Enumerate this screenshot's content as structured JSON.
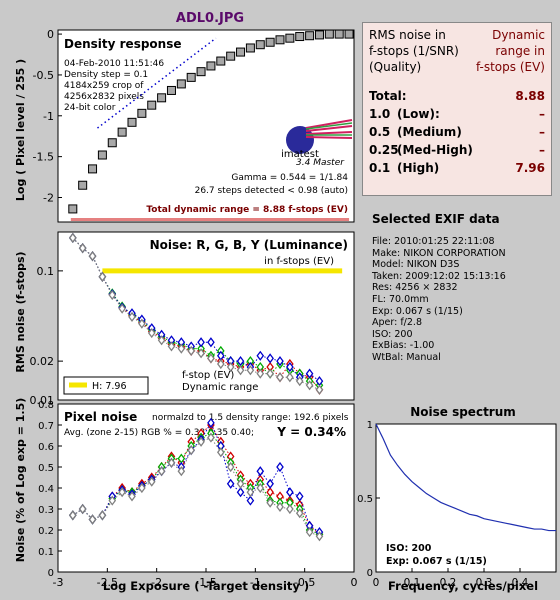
{
  "header": {
    "file_name": "ADL0.JPG"
  },
  "rms_table": {
    "header_left": [
      "RMS noise in",
      "f-stops (1/SNR)",
      "(Quality)"
    ],
    "header_right": [
      "Dynamic",
      "range in",
      "f-stops (EV)"
    ],
    "rows": [
      {
        "a": "Total:",
        "b": "",
        "c": "8.88"
      },
      {
        "a": "1.0",
        "b": "(Low):",
        "c": "–"
      },
      {
        "a": "0.5",
        "b": "(Medium)",
        "c": "–"
      },
      {
        "a": "0.25",
        "b": "(Med-High)",
        "c": "–"
      },
      {
        "a": "0.1",
        "b": "(High)",
        "c": "7.96"
      }
    ]
  },
  "exif": {
    "title": "Selected EXIF data",
    "lines": [
      "File:  2010:01:25 22:11:08",
      "Make:  NIKON CORPORATION",
      "Model: NIKON D3S",
      "Taken: 2009:12:02 15:13:16",
      "Res:   4256 × 2832",
      "FL:  70.0mm",
      "Exp:  0.067 s   (1/15)",
      "Aper:  f/2.8",
      "ISO:   200",
      "ExBias: -1.00",
      "WtBal: Manual"
    ]
  },
  "chart_data": [
    {
      "type": "scatter",
      "title": "Density response",
      "info_lines": [
        "04-Feb-2010 11:51:46",
        "Density step = 0.1",
        "4184x259 crop of",
        "4256x2832 pixels",
        "24-bit color"
      ],
      "logo_text": "imatest",
      "logo_sub": "3.4  Master",
      "gamma_text": "Gamma = 0.544 = 1/1.84",
      "steps_text": "26.7 steps detected < 0.98 (auto)",
      "dr_text": "Total dynamic range = 8.88 f-stops (EV)",
      "ylabel": "Log ( Pixel level / 255 )",
      "xlim": [
        -3.0,
        0.0
      ],
      "ylim": [
        -2.3,
        0.05
      ],
      "yticks": [
        0,
        -0.5,
        -1,
        -1.5,
        -2
      ],
      "x": [
        -2.85,
        -2.75,
        -2.65,
        -2.55,
        -2.45,
        -2.35,
        -2.25,
        -2.15,
        -2.05,
        -1.95,
        -1.85,
        -1.75,
        -1.65,
        -1.55,
        -1.45,
        -1.35,
        -1.25,
        -1.15,
        -1.05,
        -0.95,
        -0.85,
        -0.75,
        -0.65,
        -0.55,
        -0.45,
        -0.35,
        -0.25,
        -0.15,
        -0.05
      ],
      "y": [
        -2.14,
        -1.85,
        -1.65,
        -1.48,
        -1.33,
        -1.2,
        -1.08,
        -0.97,
        -0.87,
        -0.78,
        -0.69,
        -0.61,
        -0.53,
        -0.46,
        -0.39,
        -0.33,
        -0.27,
        -0.22,
        -0.17,
        -0.13,
        -0.1,
        -0.07,
        -0.05,
        -0.03,
        -0.02,
        -0.01,
        0,
        0,
        0
      ]
    },
    {
      "type": "line",
      "title": "Noise: R, G, B, Y (Luminance)",
      "subtitle": "in f-stops (EV)",
      "ylabel": "RMS noise (f-stops)",
      "scale": "log",
      "ylim": [
        0.01,
        0.2
      ],
      "ytick_labels": [
        "0.1",
        "0.02",
        "0.01"
      ],
      "legend_h": "H:  7.96",
      "legend_text": [
        "f-stop (EV)",
        "Dynamic range"
      ],
      "dr_line": 0.1,
      "x": [
        -2.85,
        -2.75,
        -2.65,
        -2.55,
        -2.45,
        -2.35,
        -2.25,
        -2.15,
        -2.05,
        -1.95,
        -1.85,
        -1.75,
        -1.65,
        -1.55,
        -1.45,
        -1.35,
        -1.25,
        -1.15,
        -1.05,
        -0.95,
        -0.85,
        -0.75,
        -0.65,
        -0.55,
        -0.45,
        -0.35
      ],
      "series": [
        {
          "values": [
            0.18,
            0.15,
            0.13,
            0.09,
            0.066,
            0.052,
            0.045,
            0.04,
            0.034,
            0.03,
            0.027,
            0.026,
            0.024,
            0.024,
            0.021,
            0.02,
            0.019,
            0.018,
            0.019,
            0.017,
            0.018,
            0.015,
            0.019,
            0.016,
            0.015,
            0.012
          ]
        },
        {
          "values": [
            0.18,
            0.15,
            0.13,
            0.09,
            0.067,
            0.053,
            0.046,
            0.041,
            0.035,
            0.031,
            0.028,
            0.027,
            0.025,
            0.025,
            0.022,
            0.024,
            0.02,
            0.019,
            0.02,
            0.018,
            0.016,
            0.019,
            0.017,
            0.016,
            0.014,
            0.013
          ]
        },
        {
          "values": [
            0.18,
            0.15,
            0.13,
            0.09,
            0.066,
            0.052,
            0.047,
            0.042,
            0.036,
            0.032,
            0.029,
            0.028,
            0.026,
            0.028,
            0.028,
            0.022,
            0.02,
            0.02,
            0.018,
            0.022,
            0.021,
            0.02,
            0.018,
            0.015,
            0.016,
            0.014
          ]
        },
        {
          "values": [
            0.18,
            0.15,
            0.13,
            0.09,
            0.065,
            0.051,
            0.044,
            0.039,
            0.033,
            0.029,
            0.026,
            0.025,
            0.024,
            0.023,
            0.021,
            0.019,
            0.018,
            0.017,
            0.017,
            0.016,
            0.016,
            0.015,
            0.015,
            0.014,
            0.013,
            0.012
          ]
        }
      ]
    },
    {
      "type": "line",
      "title": "Pixel noise",
      "norm_text": "normalzd to 1.5 density range: 192.6 pixels",
      "avg_text": "Avg. (zone 2-15) RGB % = 0.38  0.35  0.40;",
      "y_text": "Y = 0.34%",
      "ylabel": "Noise (% of Log exp = 1.5)",
      "xlabel": "Log Exposure ( -Target density )",
      "xlim": [
        -3.0,
        0.0
      ],
      "ylim": [
        0.0,
        0.8
      ],
      "xticks": [
        "-3",
        "-2.5",
        "-2",
        "-1.5",
        "-1",
        "-0.5",
        "0"
      ],
      "yticks": [
        "0",
        "0.1",
        "0.2",
        "0.3",
        "0.4",
        "0.5",
        "0.6",
        "0.7",
        "0.8"
      ],
      "x": [
        -2.85,
        -2.75,
        -2.65,
        -2.55,
        -2.45,
        -2.35,
        -2.25,
        -2.15,
        -2.05,
        -1.95,
        -1.85,
        -1.75,
        -1.65,
        -1.55,
        -1.45,
        -1.35,
        -1.25,
        -1.15,
        -1.05,
        -0.95,
        -0.85,
        -0.75,
        -0.65,
        -0.55,
        -0.45,
        -0.35
      ],
      "series": [
        {
          "values": [
            0.27,
            0.3,
            0.25,
            0.27,
            0.36,
            0.4,
            0.38,
            0.42,
            0.45,
            0.5,
            0.55,
            0.52,
            0.62,
            0.66,
            0.7,
            0.62,
            0.55,
            0.46,
            0.42,
            0.44,
            0.38,
            0.36,
            0.34,
            0.32,
            0.22,
            0.18
          ]
        },
        {
          "values": [
            0.27,
            0.3,
            0.25,
            0.27,
            0.35,
            0.39,
            0.38,
            0.41,
            0.44,
            0.5,
            0.54,
            0.54,
            0.6,
            0.64,
            0.66,
            0.6,
            0.52,
            0.44,
            0.4,
            0.42,
            0.34,
            0.33,
            0.33,
            0.3,
            0.2,
            0.18
          ]
        },
        {
          "values": [
            0.27,
            0.3,
            0.25,
            0.27,
            0.36,
            0.39,
            0.37,
            0.41,
            0.44,
            0.48,
            0.52,
            0.5,
            0.58,
            0.63,
            0.71,
            0.6,
            0.42,
            0.38,
            0.34,
            0.48,
            0.42,
            0.5,
            0.38,
            0.36,
            0.22,
            0.19
          ]
        },
        {
          "values": [
            0.27,
            0.3,
            0.25,
            0.27,
            0.34,
            0.38,
            0.36,
            0.4,
            0.43,
            0.48,
            0.52,
            0.48,
            0.58,
            0.62,
            0.64,
            0.57,
            0.5,
            0.42,
            0.38,
            0.4,
            0.33,
            0.31,
            0.3,
            0.28,
            0.19,
            0.17
          ]
        }
      ]
    },
    {
      "type": "line",
      "title": "Noise spectrum",
      "xlabel": "Frequency, cycles/pixel",
      "xlim": [
        0,
        0.5
      ],
      "ylim": [
        0,
        1.0
      ],
      "xticks": [
        "0",
        "0.1",
        "0.2",
        "0.3",
        "0.4"
      ],
      "yticks": [
        "1",
        "0.5",
        "0"
      ],
      "iso_text": "ISO:   200",
      "exp_text": "Exp:  0.067 s  (1/15)",
      "x": [
        0,
        0.02,
        0.04,
        0.06,
        0.08,
        0.1,
        0.12,
        0.14,
        0.16,
        0.18,
        0.2,
        0.22,
        0.24,
        0.26,
        0.28,
        0.3,
        0.32,
        0.34,
        0.36,
        0.38,
        0.4,
        0.42,
        0.44,
        0.46,
        0.48,
        0.5
      ],
      "y": [
        1.0,
        0.9,
        0.79,
        0.72,
        0.66,
        0.61,
        0.57,
        0.53,
        0.5,
        0.47,
        0.45,
        0.43,
        0.41,
        0.39,
        0.38,
        0.36,
        0.35,
        0.34,
        0.33,
        0.32,
        0.31,
        0.3,
        0.29,
        0.29,
        0.28,
        0.28
      ]
    }
  ],
  "colors": {
    "red": "#d00000",
    "green": "#00aa00",
    "blue": "#0000cc",
    "gray": "#808080",
    "darkred": "#7a0000",
    "yellow": "#f5e600"
  }
}
